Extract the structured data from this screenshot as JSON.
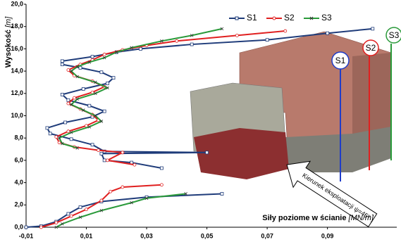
{
  "chart_data": {
    "type": "line",
    "x_label": "Siły poziome w ścianie",
    "x_unit": "[MN/m]",
    "y_label": "Wysokość",
    "y_unit": "[m]",
    "xlim": [
      -0.01,
      0.113
    ],
    "ylim": [
      0,
      20
    ],
    "xticks": [
      {
        "value": -0.01,
        "label": "-0,01"
      },
      {
        "value": 0.01,
        "label": "0,01"
      },
      {
        "value": 0.03,
        "label": "0,03"
      },
      {
        "value": 0.05,
        "label": "0,05"
      },
      {
        "value": 0.07,
        "label": "0,07"
      },
      {
        "value": 0.09,
        "label": "0,09"
      }
    ],
    "yticks": [
      {
        "value": 0,
        "label": "0,0"
      },
      {
        "value": 2,
        "label": "2,0"
      },
      {
        "value": 4,
        "label": "4,0"
      },
      {
        "value": 6,
        "label": "6,0"
      },
      {
        "value": 8,
        "label": "8,0"
      },
      {
        "value": 10,
        "label": "10,0"
      },
      {
        "value": 12,
        "label": "12,0"
      },
      {
        "value": 14,
        "label": "14,0"
      },
      {
        "value": 16,
        "label": "16,0"
      },
      {
        "value": 18,
        "label": "18,0"
      },
      {
        "value": 20,
        "label": "20,0"
      }
    ],
    "grid": false,
    "legend": "top-right",
    "series": [
      {
        "name": "S1",
        "color": "#1f3c7a",
        "marker": "square",
        "x": [
          0.105,
          0.09,
          0.07,
          0.045,
          0.028,
          0.02,
          0.012,
          0.002,
          0.002,
          0.008,
          0.015,
          0.019,
          0.017,
          0.009,
          0.002,
          0.004,
          0.011,
          0.016,
          0.012,
          0.003,
          -0.003,
          -0.002,
          0.005,
          0.012,
          0.016,
          0.05,
          0.015,
          0.016,
          0.025,
          0.035,
          null,
          0.055,
          0.03,
          0.015,
          0.008,
          0.004,
          0.0,
          -0.005,
          -0.01
        ],
        "values": [
          17.8,
          17.4,
          16.8,
          16.4,
          16.0,
          15.7,
          15.3,
          14.9,
          14.6,
          14.3,
          13.9,
          13.4,
          12.9,
          12.4,
          11.9,
          11.4,
          10.9,
          10.4,
          9.9,
          9.4,
          8.9,
          8.4,
          7.9,
          7.4,
          6.8,
          6.7,
          6.6,
          6.0,
          5.8,
          5.3,
          null,
          3.0,
          2.7,
          2.3,
          1.8,
          1.2,
          0.5,
          0.1,
          0.0
        ]
      },
      {
        "name": "S2",
        "color": "#e02020",
        "marker": "circle",
        "x": [
          0.076,
          0.06,
          0.04,
          0.03,
          0.022,
          0.016,
          0.012,
          0.008,
          0.004,
          0.006,
          0.012,
          0.016,
          0.012,
          0.006,
          0.004,
          0.008,
          0.012,
          0.014,
          0.01,
          0.004,
          0.0,
          0.001,
          0.006,
          0.014,
          0.022,
          0.017,
          0.026,
          null,
          0.035,
          0.022,
          0.018,
          0.015,
          0.01,
          0.005,
          0.0,
          -0.005
        ],
        "values": [
          17.6,
          17.2,
          16.7,
          16.3,
          15.9,
          15.5,
          15.0,
          14.6,
          14.1,
          13.6,
          13.1,
          12.6,
          12.1,
          11.6,
          11.1,
          10.6,
          10.1,
          9.6,
          9.1,
          8.6,
          8.1,
          7.6,
          7.2,
          6.9,
          6.7,
          6.0,
          5.6,
          null,
          3.8,
          3.6,
          3.2,
          2.4,
          1.6,
          1.0,
          0.4,
          0.0
        ]
      },
      {
        "name": "S3",
        "color": "#2a9a3a",
        "marker": "x",
        "x": [
          0.055,
          0.045,
          0.035,
          0.025,
          0.02,
          0.016,
          0.011,
          0.007,
          0.005,
          0.007,
          0.013,
          0.017,
          0.013,
          0.007,
          0.005,
          0.009,
          0.013,
          0.015,
          0.011,
          0.005,
          0.001,
          0.002,
          0.007,
          null,
          0.043,
          0.03,
          0.025,
          0.015,
          0.008,
          0.002,
          0.0
        ],
        "values": [
          17.8,
          17.2,
          16.7,
          16.1,
          15.7,
          15.2,
          14.8,
          14.4,
          14.0,
          13.5,
          13.0,
          12.5,
          12.0,
          11.5,
          11.0,
          10.5,
          10.0,
          9.5,
          9.0,
          8.5,
          8.0,
          7.5,
          7.1,
          null,
          3.0,
          2.6,
          2.2,
          1.5,
          0.9,
          0.3,
          0.0
        ]
      }
    ],
    "annotations": {
      "markers": [
        "S1",
        "S2",
        "S3"
      ],
      "arrow": "Kierunek eksploatacji ψ=45º"
    }
  }
}
